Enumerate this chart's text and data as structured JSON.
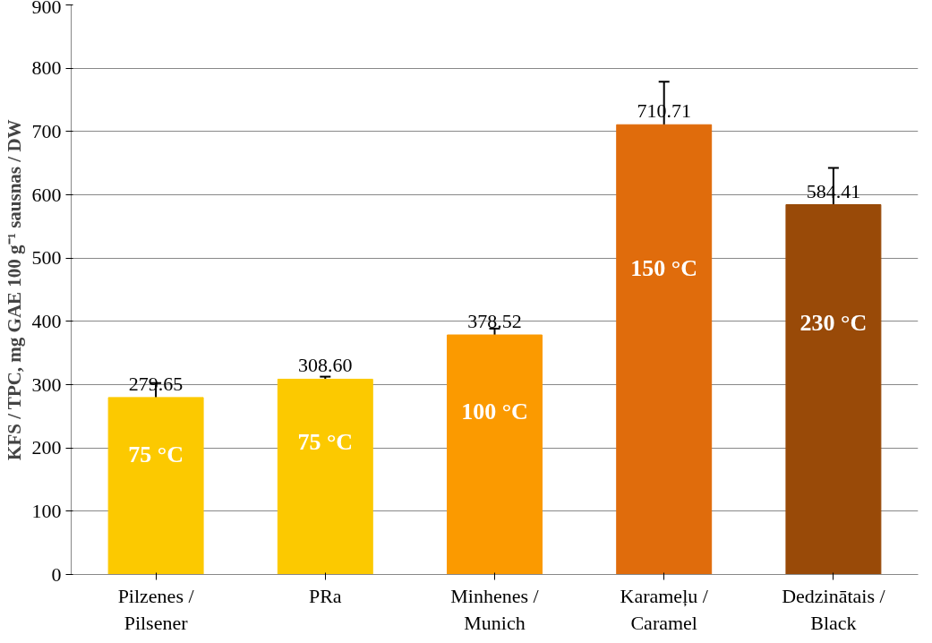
{
  "chart_data": {
    "type": "bar",
    "ylabel": "KFS / TPC, mg GAE 100 g⁻¹ sausnas / DW",
    "categories": [
      "Pilzenes /\nPilsener",
      "PRa",
      "Minhenes /\nMunich",
      "Karameļu /\nCaramel",
      "Dedzinātais /\nBlack"
    ],
    "values": [
      279.65,
      308.6,
      378.52,
      710.71,
      584.41
    ],
    "value_labels": [
      "279.65",
      "308.60",
      "378.52",
      "710.71",
      "584.41"
    ],
    "colors": [
      "#fcc900",
      "#fcc900",
      "#fb9a00",
      "#e06c0c",
      "#994a08"
    ],
    "errors": [
      23,
      4,
      10,
      68,
      58
    ],
    "ylim": [
      0,
      900
    ],
    "yticks": [
      0,
      100,
      200,
      300,
      400,
      500,
      600,
      700,
      800,
      900
    ],
    "grid": "y",
    "annotations": [
      "75 °C",
      "75 °C",
      "100 °C",
      "150 °C",
      "230 °C"
    ]
  }
}
